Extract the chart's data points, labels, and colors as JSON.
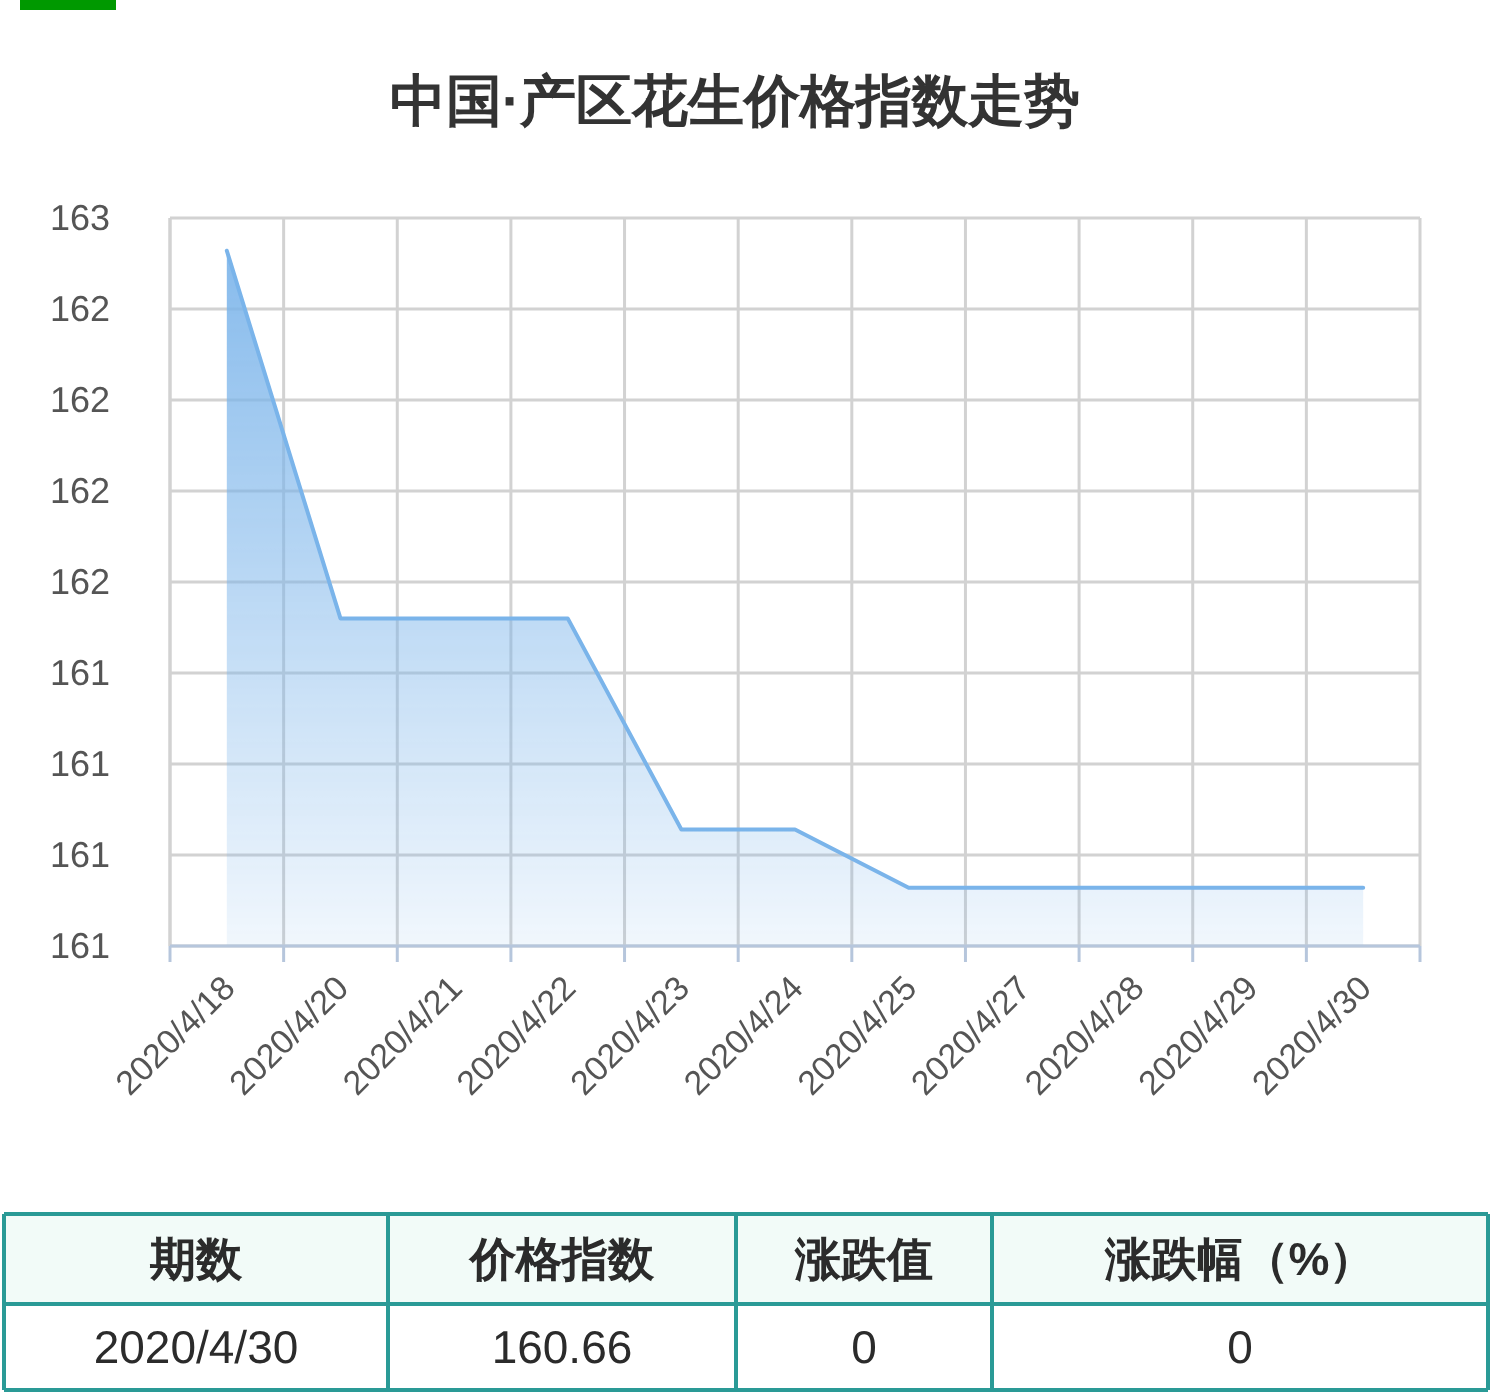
{
  "chart_data": {
    "type": "area",
    "title": "中国·产区花生价格指数走势",
    "categories": [
      "2020/4/18",
      "2020/4/20",
      "2020/4/21",
      "2020/4/22",
      "2020/4/23",
      "2020/4/24",
      "2020/4/25",
      "2020/4/27",
      "2020/4/28",
      "2020/4/29",
      "2020/4/30"
    ],
    "series": [
      {
        "color": "#7ab4ea",
        "values": [
          162.41,
          161.4,
          161.4,
          161.4,
          160.82,
          160.82,
          160.66,
          160.66,
          160.66,
          160.66,
          160.66
        ]
      }
    ],
    "ylim": [
      160.5,
      162.5
    ],
    "yticks": [
      {
        "value": 160.5,
        "label": "161"
      },
      {
        "value": 160.75,
        "label": "161"
      },
      {
        "value": 161,
        "label": "161"
      },
      {
        "value": 161.25,
        "label": "161"
      },
      {
        "value": 161.5,
        "label": "162"
      },
      {
        "value": 161.75,
        "label": "162"
      },
      {
        "value": 162,
        "label": "162"
      },
      {
        "value": 162.25,
        "label": "162"
      },
      {
        "value": 162.5,
        "label": "163"
      }
    ],
    "grid": true,
    "annotations": [
      "期数",
      "价格指数",
      "涨跌值",
      "涨跌幅（%）",
      "2020/4/30",
      "160.66",
      "0",
      "0"
    ]
  }
}
